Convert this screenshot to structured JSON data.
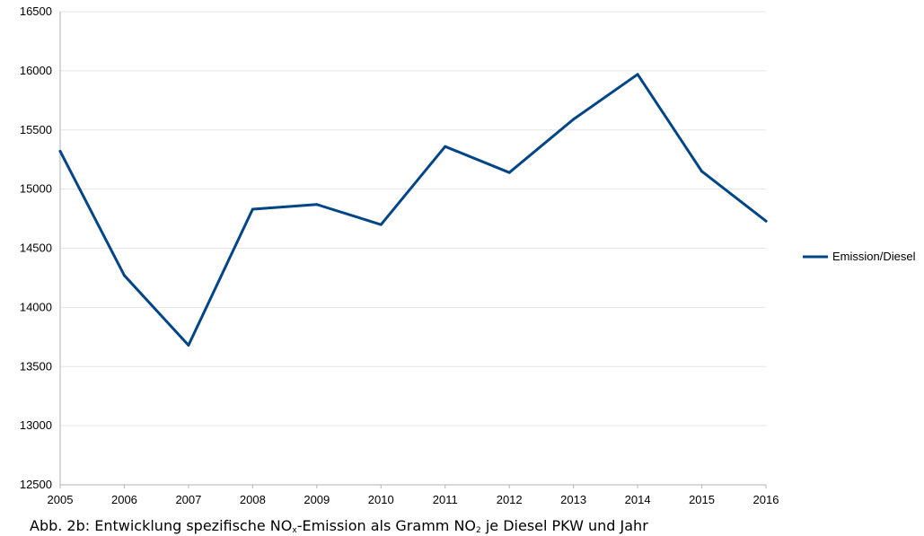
{
  "chart_data": {
    "type": "line",
    "title": "",
    "xlabel": "",
    "ylabel": "",
    "x": [
      "2005",
      "2006",
      "2007",
      "2008",
      "2009",
      "2010",
      "2011",
      "2012",
      "2013",
      "2014",
      "2015",
      "2016"
    ],
    "series": [
      {
        "name": "Emission/Diesel",
        "values": [
          15320,
          14270,
          13680,
          14830,
          14870,
          14700,
          15360,
          15140,
          15590,
          15970,
          15150,
          14730
        ],
        "color": "#004586"
      }
    ],
    "ylim": [
      12500,
      16500
    ],
    "yticks": [
      12500,
      13000,
      13500,
      14000,
      14500,
      15000,
      15500,
      16000,
      16500
    ],
    "grid": "horizontal",
    "legend_position": "right"
  },
  "caption": {
    "prefix": "Abb. 2b: Entwicklung spezifische NO",
    "sub1": "x",
    "middle": "-Emission als Gramm NO",
    "sub2": "2",
    "suffix": " je Diesel PKW und Jahr"
  }
}
